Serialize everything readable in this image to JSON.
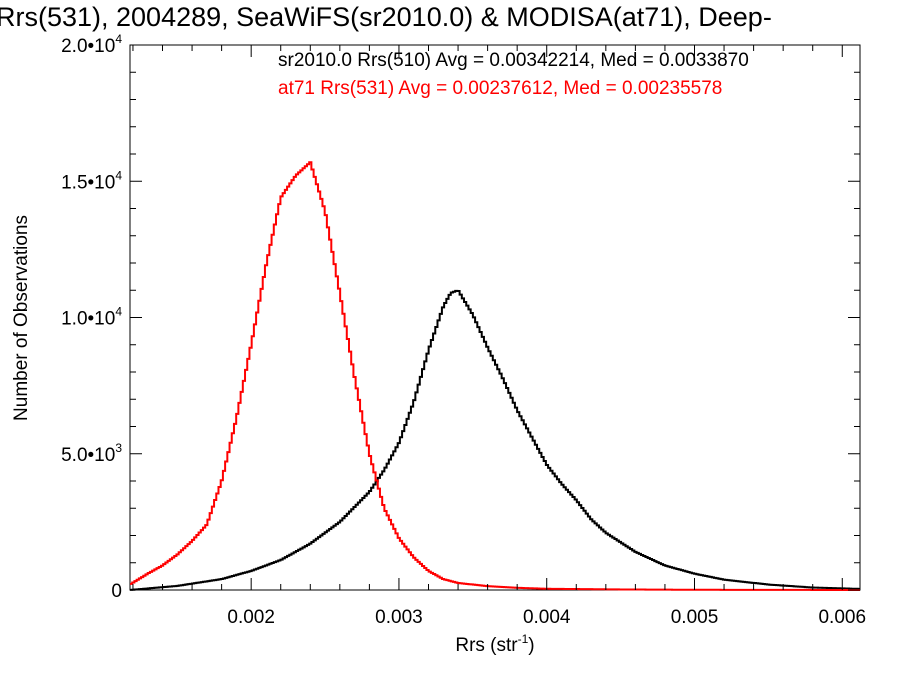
{
  "chart_data": {
    "type": "line",
    "title": "Rrs(531), 2004289, SeaWiFS(sr2010.0) & MODISA(at71), Deep-",
    "xlabel": "Rrs (str",
    "xlabel_sup": "-1",
    "xlabel_close": ")",
    "ylabel": "Number of Observations",
    "xlim": [
      0.00118,
      0.00612
    ],
    "ylim": [
      0,
      20000
    ],
    "grid": false,
    "xticks": [
      {
        "value": 0.002,
        "label": "0.002"
      },
      {
        "value": 0.003,
        "label": "0.003"
      },
      {
        "value": 0.004,
        "label": "0.004"
      },
      {
        "value": 0.005,
        "label": "0.005"
      },
      {
        "value": 0.006,
        "label": "0.006"
      }
    ],
    "yticks": [
      {
        "value": 0,
        "mantissa": "0",
        "exp": ""
      },
      {
        "value": 5000,
        "mantissa": "5.0•10",
        "exp": "3"
      },
      {
        "value": 10000,
        "mantissa": "1.0•10",
        "exp": "4"
      },
      {
        "value": 15000,
        "mantissa": "1.5•10",
        "exp": "4"
      },
      {
        "value": 20000,
        "mantissa": "2.0•10",
        "exp": "4"
      }
    ],
    "legend": [
      {
        "text": "sr2010.0 Rrs(510) Avg = 0.00342214, Med = 0.0033870",
        "color": "#000000"
      },
      {
        "text": "at71 Rrs(531) Avg = 0.00237612, Med = 0.00235578",
        "color": "#ff0000"
      }
    ],
    "series": [
      {
        "color": "#000000",
        "x": [
          0.00118,
          0.0015,
          0.0018,
          0.002,
          0.0022,
          0.0024,
          0.0026,
          0.0028,
          0.0029,
          0.003,
          0.0031,
          0.0032,
          0.0033,
          0.00335,
          0.0034,
          0.0035,
          0.0036,
          0.0037,
          0.0038,
          0.0039,
          0.004,
          0.0041,
          0.0042,
          0.0043,
          0.0044,
          0.0046,
          0.0048,
          0.005,
          0.0052,
          0.0055,
          0.0058,
          0.00612
        ],
        "y": [
          0,
          150,
          400,
          700,
          1100,
          1700,
          2500,
          3600,
          4400,
          5400,
          6900,
          8800,
          10400,
          10900,
          11000,
          10100,
          8900,
          7800,
          6600,
          5600,
          4600,
          3900,
          3300,
          2600,
          2100,
          1400,
          900,
          600,
          380,
          200,
          90,
          40
        ]
      },
      {
        "color": "#ff0000",
        "x": [
          0.00118,
          0.0013,
          0.0014,
          0.0015,
          0.0016,
          0.0017,
          0.0018,
          0.0019,
          0.002,
          0.0021,
          0.0022,
          0.0023,
          0.0024,
          0.0025,
          0.0026,
          0.0027,
          0.0028,
          0.0029,
          0.003,
          0.0031,
          0.0032,
          0.0033,
          0.0034,
          0.0036,
          0.0038,
          0.004,
          0.0045,
          0.005,
          0.00612
        ],
        "y": [
          200,
          600,
          900,
          1300,
          1800,
          2400,
          4000,
          6300,
          9000,
          11900,
          14400,
          15200,
          15700,
          13900,
          10900,
          7800,
          5000,
          3000,
          1900,
          1200,
          700,
          400,
          260,
          140,
          80,
          45,
          20,
          8,
          0
        ]
      }
    ]
  }
}
